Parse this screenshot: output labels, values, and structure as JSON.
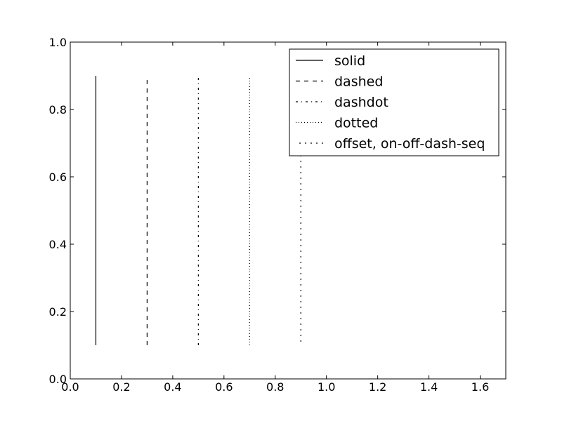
{
  "chart_data": {
    "type": "line",
    "title": "",
    "xlabel": "",
    "ylabel": "",
    "xlim": [
      0.0,
      1.7
    ],
    "ylim": [
      0.0,
      1.0
    ],
    "grid": false,
    "legend_placement": "upper-right",
    "x_ticks": [
      "0.0",
      "0.2",
      "0.4",
      "0.6",
      "0.8",
      "1.0",
      "1.2",
      "1.4",
      "1.6"
    ],
    "y_ticks": [
      "0.0",
      "0.2",
      "0.4",
      "0.6",
      "0.8",
      "1.0"
    ],
    "series": [
      {
        "name": "solid",
        "style": "solid",
        "color": "#000000",
        "x": [
          0.1,
          0.1
        ],
        "y": [
          0.1,
          0.9
        ]
      },
      {
        "name": "dashed",
        "style": "dashed",
        "color": "#000000",
        "x": [
          0.3,
          0.3
        ],
        "y": [
          0.1,
          0.9
        ]
      },
      {
        "name": "dashdot",
        "style": "dashdot",
        "color": "#000000",
        "x": [
          0.5,
          0.5
        ],
        "y": [
          0.1,
          0.9
        ]
      },
      {
        "name": "dotted",
        "style": "dotted",
        "color": "#000000",
        "x": [
          0.7,
          0.7
        ],
        "y": [
          0.1,
          0.9
        ]
      },
      {
        "name": "offset, on-off-dash-seq",
        "style": "offset-dotted",
        "color": "#000000",
        "x": [
          0.9,
          0.9
        ],
        "y": [
          0.1,
          0.9
        ]
      }
    ]
  }
}
